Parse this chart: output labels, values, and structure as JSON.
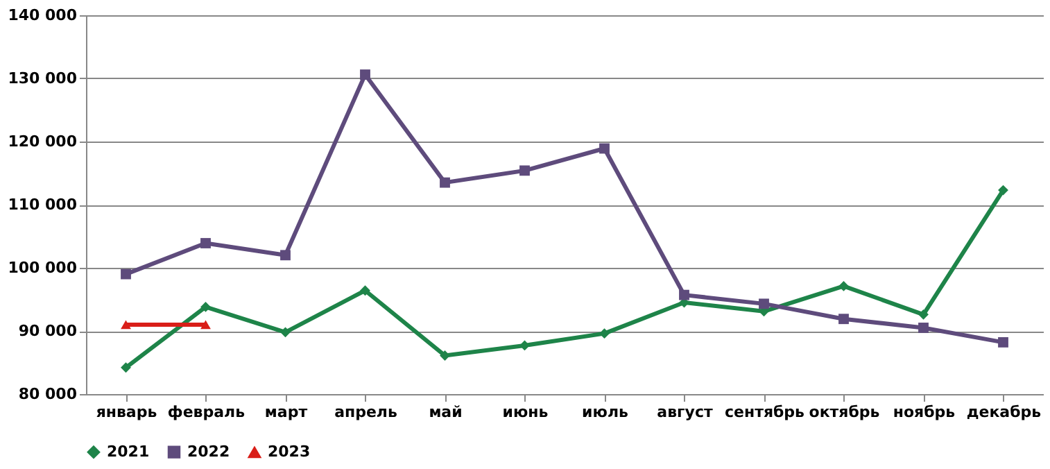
{
  "chart_data": {
    "type": "line",
    "categories": [
      "январь",
      "февраль",
      "март",
      "апрель",
      "май",
      "июнь",
      "июль",
      "август",
      "сентябрь",
      "октябрь",
      "ноябрь",
      "декабрь"
    ],
    "series": [
      {
        "name": "2021",
        "color": "#1e8449",
        "marker": "diamond",
        "values": [
          84200,
          93800,
          89800,
          96400,
          86100,
          87700,
          89600,
          94500,
          93100,
          97100,
          92600,
          112300
        ]
      },
      {
        "name": "2022",
        "color": "#5e4b7c",
        "marker": "square",
        "values": [
          99000,
          103900,
          102000,
          130600,
          113500,
          115400,
          118900,
          95700,
          94300,
          91900,
          90500,
          88200
        ]
      },
      {
        "name": "2023",
        "color": "#d91e18",
        "marker": "triangle",
        "values": [
          91000,
          91000,
          null,
          null,
          null,
          null,
          null,
          null,
          null,
          null,
          null,
          null
        ]
      }
    ],
    "ylim": [
      80000,
      140000
    ],
    "yticks": [
      {
        "value": 80000,
        "label": "80 000"
      },
      {
        "value": 90000,
        "label": "90 000"
      },
      {
        "value": 100000,
        "label": "100 000"
      },
      {
        "value": 110000,
        "label": "110 000"
      },
      {
        "value": 120000,
        "label": "120 000"
      },
      {
        "value": 130000,
        "label": "130 000"
      },
      {
        "value": 140000,
        "label": "140 000"
      }
    ],
    "grid": "y",
    "legend": "bottom",
    "line_style": "solid"
  }
}
